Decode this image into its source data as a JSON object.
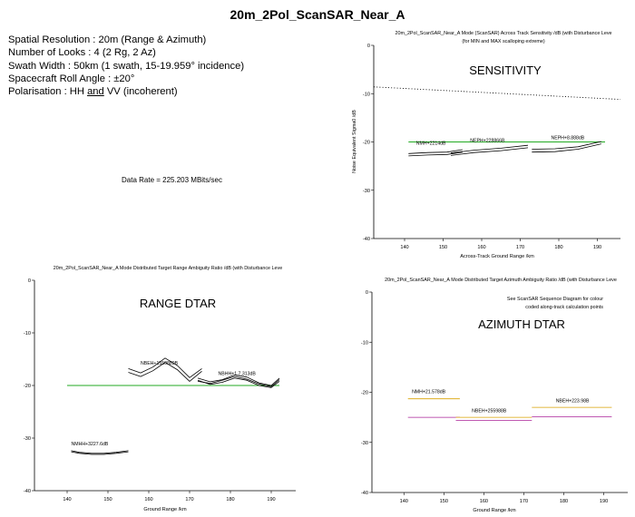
{
  "page": {
    "title": "20m_2Pol_ScanSAR_Near_A",
    "params": [
      "Spatial Resolution : 20m (Range & Azimuth)",
      "Number of Looks : 4 (2 Rg, 2 Az)",
      "Swath Width : 50km (1 swath, 15-19.959° incidence)",
      "Spacecraft Roll Angle : ±20°"
    ],
    "polarisation": {
      "prefix": "Polarisation : HH ",
      "and": "and",
      "suffix": " VV (incoherent)"
    },
    "data_rate": "Data Rate = 225.203 MBits/sec"
  },
  "chart_data": [
    {
      "id": "sensitivity",
      "type": "line",
      "title": "20m_2Pol_ScanSAR_Near_A Mode (ScanSAR) Across Track Sensitivity /dB (with Disturbance Leve",
      "subtitle": "(for MIN and MAX scalloping extreme)",
      "big_label": "SENSITIVITY",
      "xlabel": "Across-Track Ground Range /km",
      "ylabel": "Noise Equivalent Sigma0 /dB",
      "xlim": [
        132,
        196
      ],
      "ylim": [
        -40,
        0
      ],
      "xticks": [
        140,
        150,
        160,
        170,
        180,
        190
      ],
      "yticks": [
        0,
        -10,
        -20,
        -30,
        -40
      ],
      "ytick_labels": [
        "0",
        "-10",
        "-20",
        "-30",
        "-40"
      ],
      "reference": {
        "style": "dotted",
        "color": "#000000",
        "x": [
          132,
          196
        ],
        "y": [
          -8.6,
          -11.2
        ]
      },
      "threshold": {
        "color": "#22aa22",
        "x": [
          141,
          192
        ],
        "y": [
          -20,
          -20
        ]
      },
      "series": [
        {
          "color": "#000000",
          "x": [
            141,
            146,
            151,
            155
          ],
          "y": [
            -22.4,
            -22.2,
            -22.1,
            -21.6
          ]
        },
        {
          "color": "#000000",
          "x": [
            141,
            146,
            151,
            155
          ],
          "y": [
            -22.9,
            -22.7,
            -22.6,
            -22.1
          ]
        },
        {
          "color": "#000000",
          "x": [
            152,
            158,
            165,
            172
          ],
          "y": [
            -22.3,
            -21.7,
            -21.3,
            -20.7
          ]
        },
        {
          "color": "#000000",
          "x": [
            152,
            158,
            165,
            172
          ],
          "y": [
            -22.8,
            -22.2,
            -21.8,
            -21.2
          ]
        },
        {
          "color": "#000000",
          "x": [
            173,
            179,
            185,
            191
          ],
          "y": [
            -21.5,
            -21.4,
            -21.0,
            -19.9
          ]
        },
        {
          "color": "#000000",
          "x": [
            173,
            179,
            185,
            191
          ],
          "y": [
            -22.1,
            -22.0,
            -21.5,
            -20.4
          ]
        }
      ],
      "annotations": [
        {
          "text": "NMH+2214dB",
          "x": 143,
          "y": -20.6
        },
        {
          "text": "NEPH+228866B",
          "x": 157,
          "y": -20.0
        },
        {
          "text": "NEPH+8.888dB",
          "x": 178,
          "y": -19.4
        }
      ]
    },
    {
      "id": "range_dtar",
      "type": "line",
      "title": "20m_2Pol_ScanSAR_Near_A Mode Distributed Target Range Ambiguity Ratio /dB (with Disturbance Leve",
      "big_label": "RANGE DTAR",
      "xlabel": "Ground Range /km",
      "ylabel": "",
      "xlim": [
        132,
        196
      ],
      "ylim": [
        -40,
        0
      ],
      "xticks": [
        140,
        150,
        160,
        170,
        180,
        190
      ],
      "yticks": [
        0,
        -10,
        -20,
        -30,
        -40
      ],
      "ytick_labels": [
        "0",
        "-10",
        "-20",
        "-30",
        "-40"
      ],
      "threshold": {
        "color": "#22aa22",
        "x": [
          140,
          192
        ],
        "y": [
          -20,
          -20
        ]
      },
      "series": [
        {
          "color": "#000000",
          "x": [
            141,
            143,
            146,
            149,
            152,
            155
          ],
          "y": [
            -32.6,
            -32.9,
            -33.1,
            -33.1,
            -32.9,
            -32.6
          ]
        },
        {
          "color": "#000000",
          "x": [
            141,
            143,
            146,
            149,
            152,
            155
          ],
          "y": [
            -32.4,
            -32.7,
            -32.9,
            -32.9,
            -32.7,
            -32.4
          ]
        },
        {
          "color": "#000000",
          "x": [
            155,
            158,
            161,
            164,
            167,
            170,
            173
          ],
          "y": [
            -17.5,
            -18.3,
            -17.2,
            -15.6,
            -17.0,
            -19.2,
            -17.3
          ]
        },
        {
          "color": "#000000",
          "x": [
            155,
            158,
            161,
            164,
            167,
            170,
            173
          ],
          "y": [
            -16.8,
            -17.6,
            -16.5,
            -14.8,
            -16.2,
            -18.5,
            -16.8
          ]
        },
        {
          "color": "#000000",
          "x": [
            172,
            175,
            178,
            181,
            184,
            187,
            190,
            192
          ],
          "y": [
            -19.0,
            -19.8,
            -19.4,
            -18.6,
            -19.0,
            -20.0,
            -20.4,
            -19.2
          ]
        },
        {
          "color": "#000000",
          "x": [
            172,
            175,
            178,
            181,
            184,
            187,
            190,
            192
          ],
          "y": [
            -18.6,
            -19.3,
            -18.9,
            -18.0,
            -18.4,
            -19.5,
            -20.0,
            -18.6
          ]
        },
        {
          "color": "#000000",
          "x": [
            172,
            175,
            178,
            181,
            184,
            187,
            190,
            192
          ],
          "y": [
            -19.2,
            -19.6,
            -19.0,
            -18.3,
            -18.8,
            -19.7,
            -20.2,
            -18.9
          ]
        }
      ],
      "annotations": [
        {
          "text": "NMHH+3227.6dB",
          "x": 141,
          "y": -31.4
        },
        {
          "text": "NBEH+1550889B",
          "x": 158,
          "y": -16.0
        },
        {
          "text": "NBHH+1.7.313dB",
          "x": 177,
          "y": -18.0
        }
      ]
    },
    {
      "id": "azimuth_dtar",
      "type": "line",
      "title": "20m_2Pol_ScanSAR_Near_A Mode Distributed Target Azimuth Ambiguity Ratio /dB (with Disturbance Leve",
      "big_label": "AZIMUTH DTAR",
      "notes": [
        "See ScanSAR Sequence Diagram for colour",
        "coded along-track calculation points"
      ],
      "xlabel": "Ground Range /km",
      "ylabel": "",
      "xlim": [
        132,
        196
      ],
      "ylim": [
        -40,
        0
      ],
      "xticks": [
        140,
        150,
        160,
        170,
        180,
        190
      ],
      "yticks": [
        0,
        -10,
        -20,
        -30,
        -40
      ],
      "ytick_labels": [
        "0",
        "-10",
        "-20",
        "-30",
        "-40"
      ],
      "series": [
        {
          "color": "#d8a000",
          "x": [
            141,
            154
          ],
          "y": [
            -21.3,
            -21.3
          ]
        },
        {
          "color": "#aa2299",
          "x": [
            141,
            154
          ],
          "y": [
            -25.0,
            -25.0
          ]
        },
        {
          "color": "#d8a000",
          "x": [
            153,
            172
          ],
          "y": [
            -25.0,
            -25.0
          ]
        },
        {
          "color": "#aa2299",
          "x": [
            153,
            172
          ],
          "y": [
            -25.6,
            -25.6
          ]
        },
        {
          "color": "#d8a000",
          "x": [
            172,
            192
          ],
          "y": [
            -23.0,
            -23.0
          ]
        },
        {
          "color": "#aa2299",
          "x": [
            172,
            192
          ],
          "y": [
            -24.9,
            -24.9
          ]
        }
      ],
      "annotations": [
        {
          "text": "NMH+21.578dB",
          "x": 142,
          "y": -20.2
        },
        {
          "text": "NBEH+255988B",
          "x": 157,
          "y": -24.0
        },
        {
          "text": "NBEH+223.98B",
          "x": 178,
          "y": -22.0
        }
      ]
    }
  ]
}
